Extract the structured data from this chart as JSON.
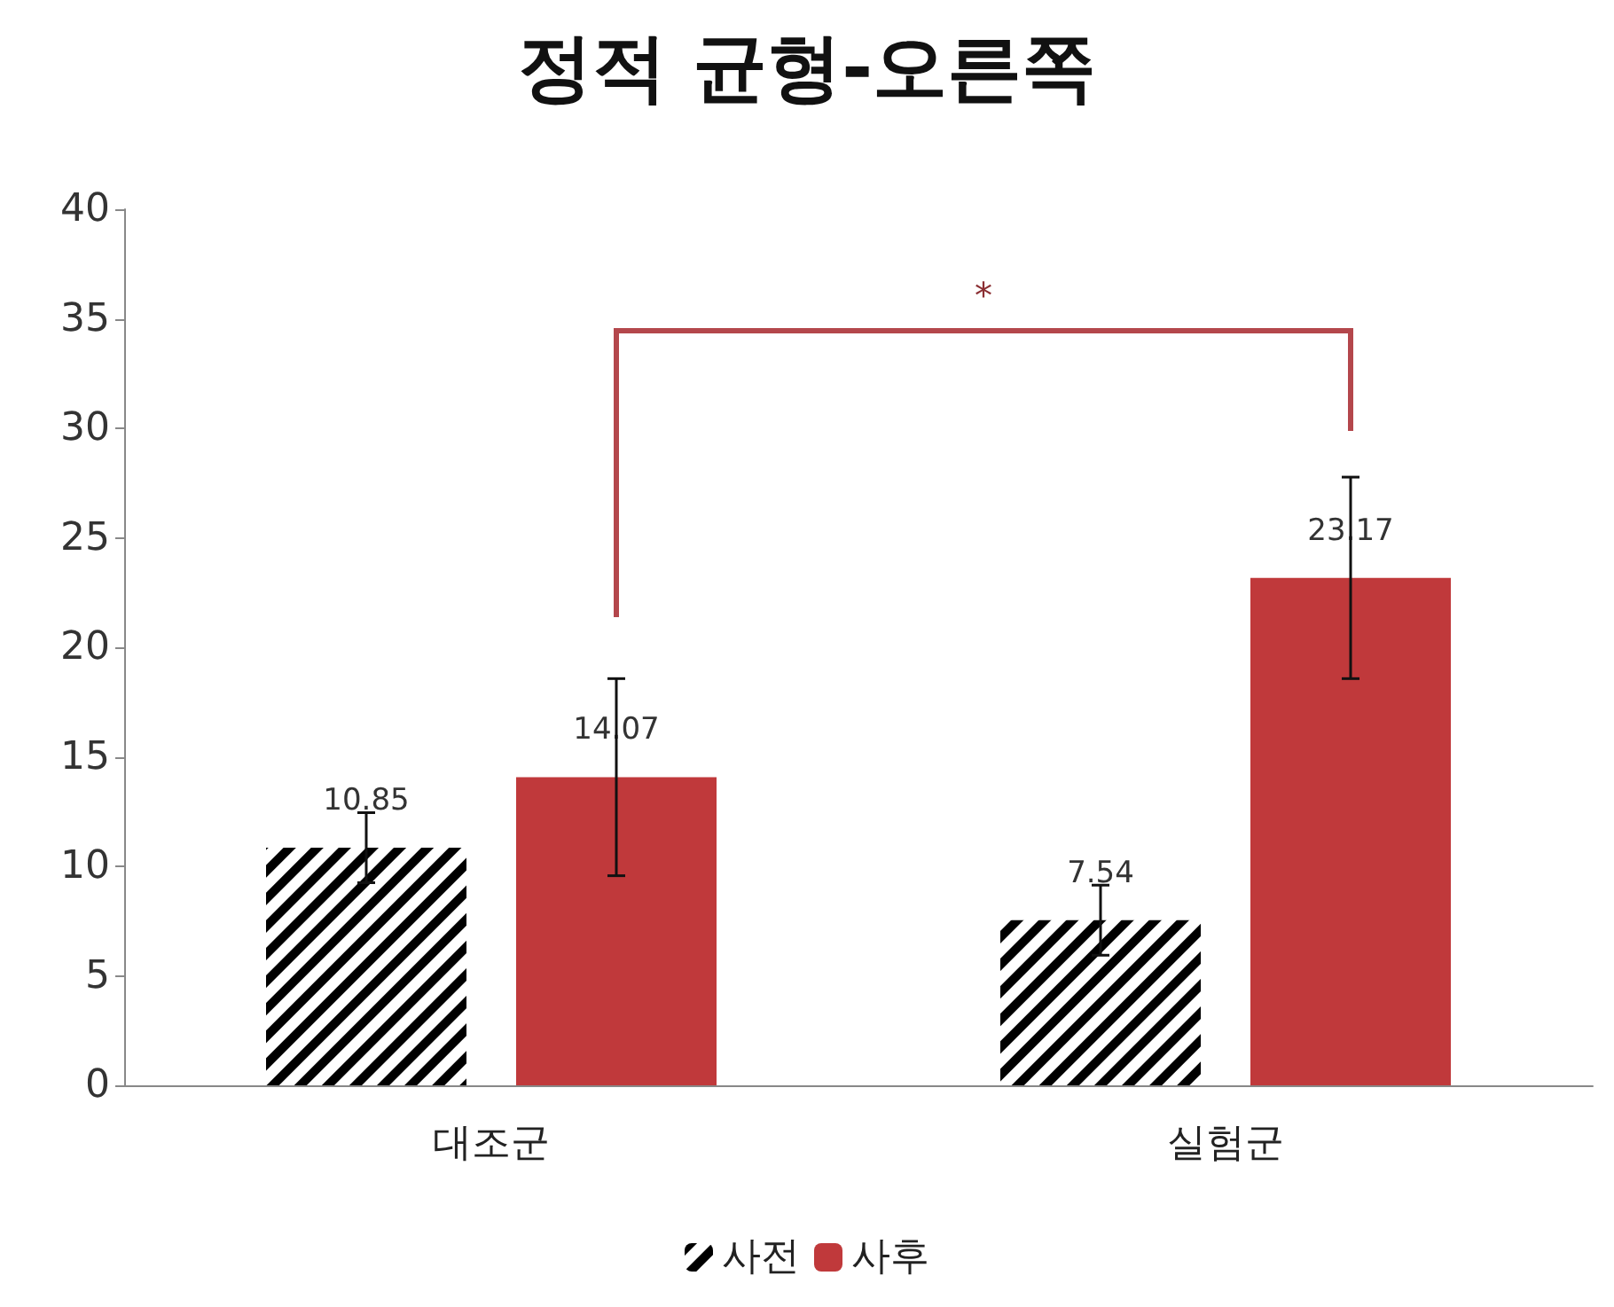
{
  "chart_data": {
    "type": "bar",
    "title": "정적 균형-오른쪽",
    "categories": [
      "대조군",
      "실험군"
    ],
    "series": [
      {
        "name": "사전",
        "color": "#000000",
        "values": [
          10.85,
          7.54
        ],
        "errors": [
          1.6,
          1.6
        ]
      },
      {
        "name": "사후",
        "color": "#c0393b",
        "values": [
          14.07,
          23.17
        ],
        "errors": [
          4.5,
          4.6
        ]
      }
    ],
    "ylim": [
      0,
      40
    ],
    "yticks": [
      0,
      5,
      10,
      15,
      20,
      25,
      30,
      35,
      40
    ],
    "grid": false,
    "legend": "bottom",
    "data_labels": true,
    "annotations": [
      "*"
    ]
  }
}
